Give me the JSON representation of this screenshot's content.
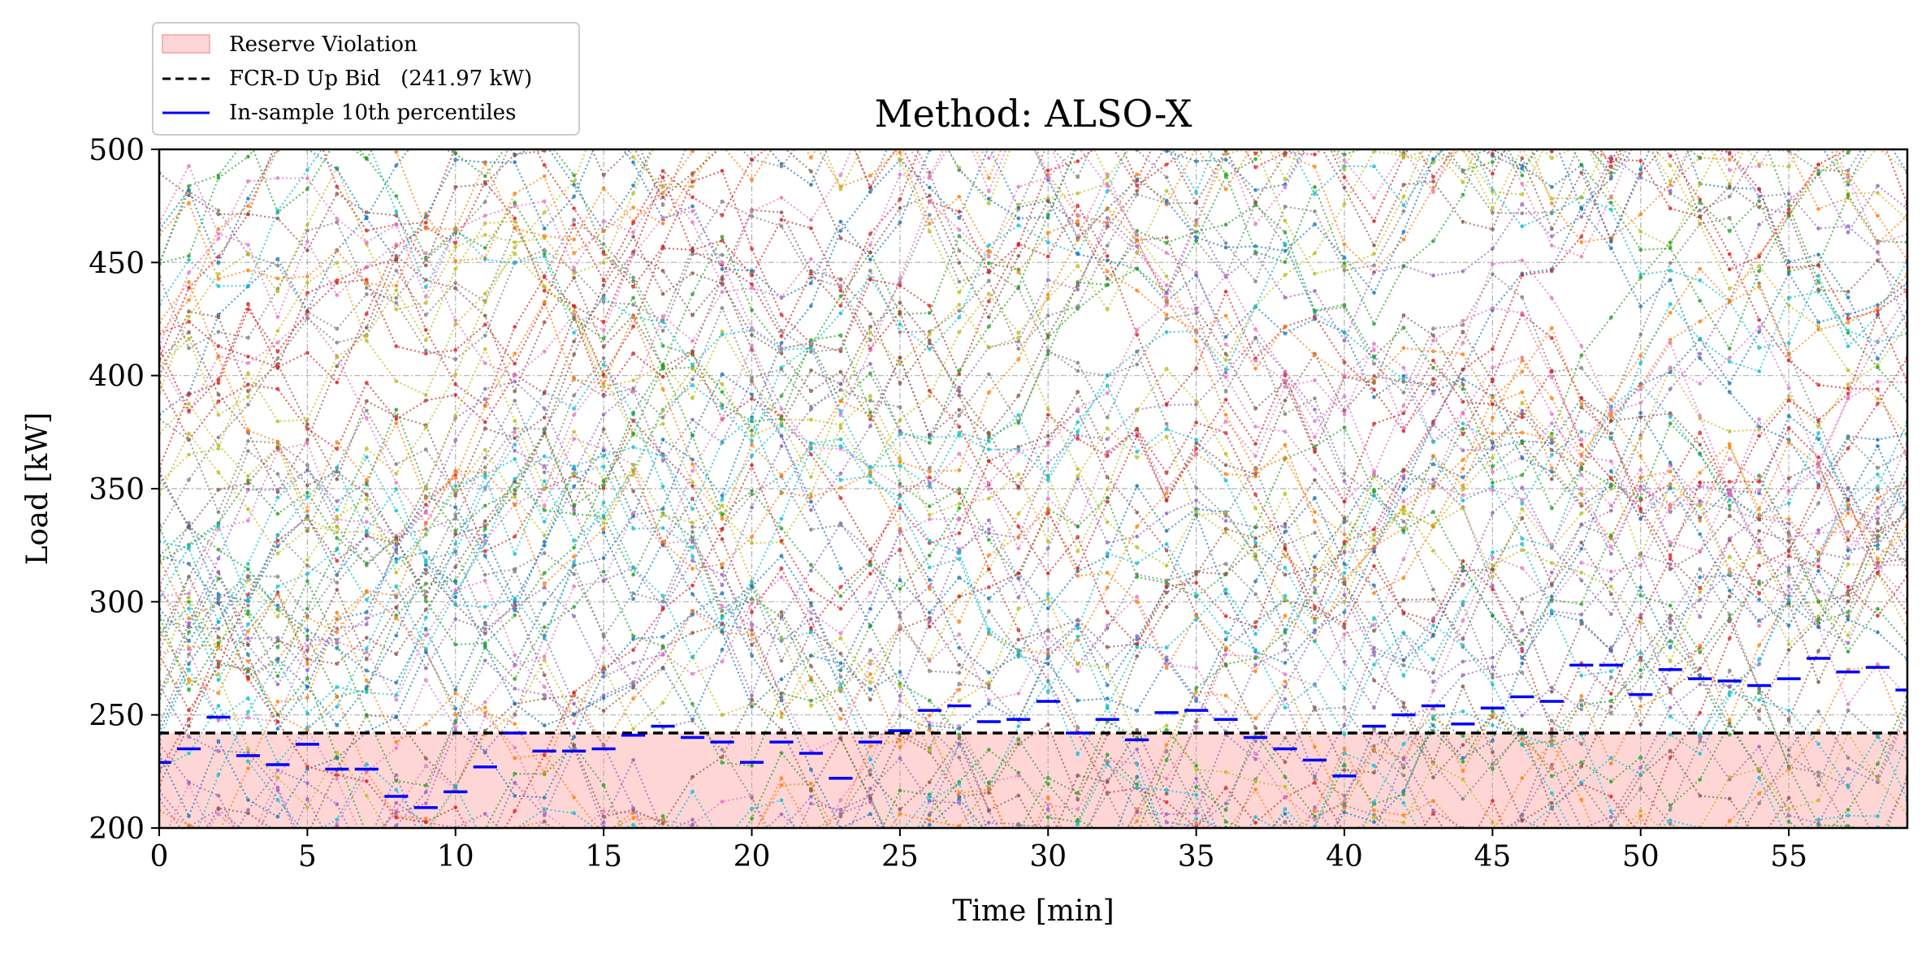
{
  "chart_data": {
    "type": "line",
    "title": "Method: ALSO-X",
    "xlabel": "Time [min]",
    "ylabel": "Load [kW]",
    "xlim": [
      0,
      59
    ],
    "ylim": [
      200,
      500
    ],
    "xticks": [
      0,
      5,
      10,
      15,
      20,
      25,
      30,
      35,
      40,
      45,
      50,
      55
    ],
    "yticks": [
      200,
      250,
      300,
      350,
      400,
      450,
      500
    ],
    "grid": true,
    "legend_position": "top-left, above plot",
    "legend": [
      {
        "label": "Reserve Violation",
        "kind": "patch",
        "color": "#ffd6d6"
      },
      {
        "label": "FCR-D Up Bid   (241.97 kW)",
        "kind": "dashed-line",
        "color": "#000000"
      },
      {
        "label": "In-sample 10th percentiles",
        "kind": "line",
        "color": "#0000ff"
      }
    ],
    "violation_region": {
      "from": 200,
      "to": 241.97,
      "color": "#ffd6d6"
    },
    "bid": {
      "value": 241.97,
      "color": "#000000"
    },
    "percentiles": {
      "color": "#0000ff",
      "x": [
        0,
        1,
        2,
        3,
        4,
        5,
        6,
        7,
        8,
        9,
        10,
        11,
        12,
        13,
        14,
        15,
        16,
        17,
        18,
        19,
        20,
        21,
        22,
        23,
        24,
        25,
        26,
        27,
        28,
        29,
        30,
        31,
        32,
        33,
        34,
        35,
        36,
        37,
        38,
        39,
        40,
        41,
        42,
        43,
        44,
        45,
        46,
        47,
        48,
        49,
        50,
        51,
        52,
        53,
        54,
        55,
        56,
        57,
        58,
        59
      ],
      "values": [
        229,
        235,
        249,
        232,
        228,
        237,
        226,
        226,
        214,
        209,
        216,
        227,
        242,
        234,
        234,
        235,
        241,
        245,
        240,
        238,
        229,
        238,
        233,
        222,
        238,
        243,
        252,
        254,
        247,
        248,
        256,
        242,
        248,
        239,
        251,
        252,
        248,
        240,
        235,
        230,
        223,
        245,
        250,
        254,
        246,
        253,
        258,
        256,
        272,
        272,
        259,
        270,
        266,
        265,
        263,
        266,
        275,
        269,
        271,
        261
      ]
    },
    "scenario_series": {
      "count": 70,
      "style": "dotted lines with point markers",
      "colors": [
        "#1f77b4",
        "#ff7f0e",
        "#2ca02c",
        "#d62728",
        "#9467bd",
        "#8c564b",
        "#e377c2",
        "#7f7f7f",
        "#bcbd22",
        "#17becf"
      ]
    }
  }
}
